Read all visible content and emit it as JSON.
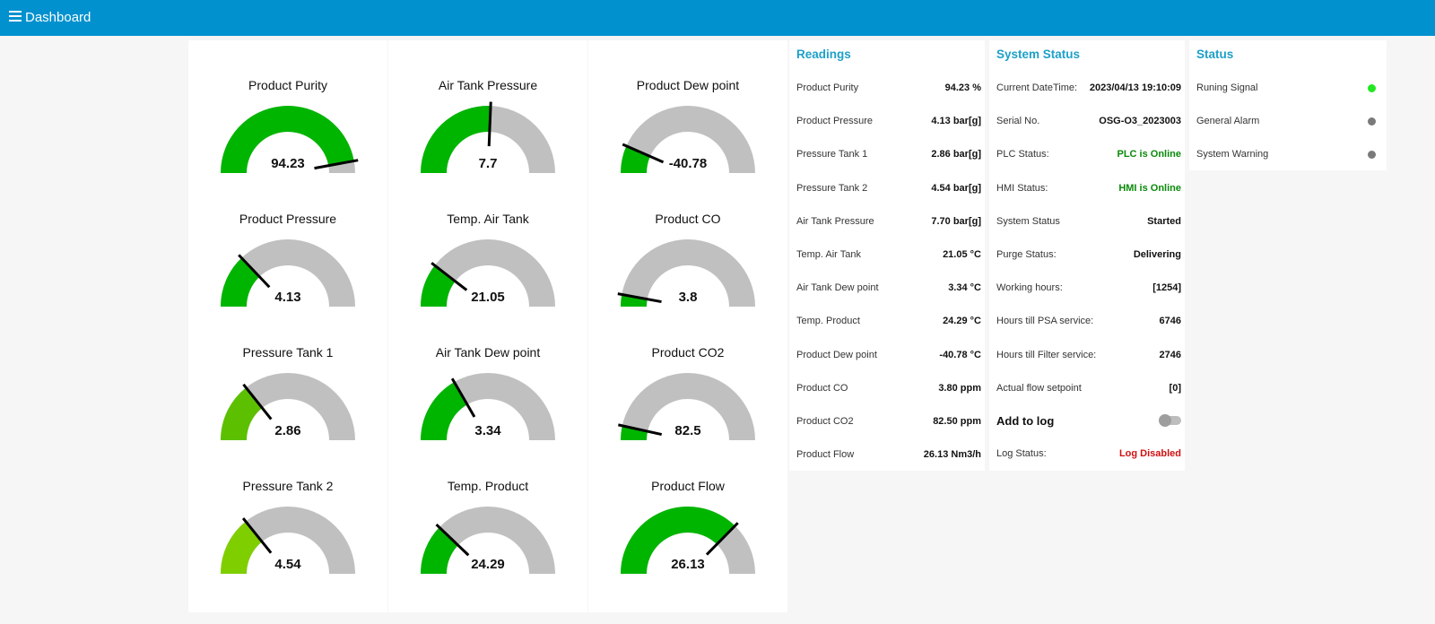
{
  "header": {
    "title": "Dashboard",
    "menu_icon": "hamburger-icon",
    "bg_color": "#0191cf"
  },
  "gauges": [
    [
      {
        "title": "Product Purity",
        "value": "94.23",
        "unit": "%",
        "min": "0",
        "max": "100",
        "fill": 0.9423,
        "color": "#00b500"
      },
      {
        "title": "Product Pressure",
        "value": "4.13",
        "unit": "bar[g]",
        "min": "0",
        "max": "16",
        "fill": 0.258,
        "color": "#00b500"
      },
      {
        "title": "Pressure Tank 1",
        "value": "2.86",
        "unit": "bar[g]",
        "min": "0",
        "max": "10",
        "fill": 0.286,
        "color": "#5cc000"
      },
      {
        "title": "Pressure Tank 2",
        "value": "4.54",
        "unit": "bar[g]",
        "min": "0",
        "max": "16",
        "fill": 0.284,
        "color": "#7fce00"
      }
    ],
    [
      {
        "title": "Air Tank Pressure",
        "value": "7.7",
        "unit": "bar[g]",
        "min": "0",
        "max": "15",
        "fill": 0.513,
        "color": "#00b500"
      },
      {
        "title": "Temp. Air Tank",
        "value": "21.05",
        "unit": "°C",
        "min": "0",
        "max": "100",
        "fill": 0.21,
        "color": "#00b500"
      },
      {
        "title": "Air Tank Dew point",
        "value": "3.34",
        "unit": "°C",
        "min": "-20",
        "max": "50",
        "fill": 0.333,
        "color": "#00b500"
      },
      {
        "title": "Temp. Product",
        "value": "24.29",
        "unit": "°C",
        "min": "0",
        "max": "100",
        "fill": 0.243,
        "color": "#00b500"
      }
    ],
    [
      {
        "title": "Product Dew point",
        "value": "-40.78",
        "unit": "°C",
        "min": "-50",
        "max": "20",
        "fill": 0.132,
        "color": "#00b500"
      },
      {
        "title": "Product CO",
        "value": "3.8",
        "unit": "ppm",
        "min": "0",
        "max": "65",
        "fill": 0.058,
        "color": "#00b500"
      },
      {
        "title": "Product CO2",
        "value": "82.5",
        "unit": "ppm",
        "min": "0",
        "max": "1200",
        "fill": 0.069,
        "color": "#00b500"
      },
      {
        "title": "Product Flow",
        "value": "26.13",
        "unit": "Nm3/h",
        "min": "0",
        "max": "35",
        "fill": 0.747,
        "color": "#00b500"
      }
    ]
  ],
  "readings": {
    "title": "Readings",
    "rows": [
      {
        "label": "Product Purity",
        "value": "94.23 %"
      },
      {
        "label": "Product Pressure",
        "value": "4.13 bar[g]"
      },
      {
        "label": "Pressure Tank 1",
        "value": "2.86 bar[g]"
      },
      {
        "label": "Pressure Tank 2",
        "value": "4.54 bar[g]"
      },
      {
        "label": "Air Tank Pressure",
        "value": "7.70 bar[g]"
      },
      {
        "label": "Temp. Air Tank",
        "value": "21.05 °C"
      },
      {
        "label": "Air Tank Dew point",
        "value": "3.34 °C"
      },
      {
        "label": "Temp. Product",
        "value": "24.29 °C"
      },
      {
        "label": "Product Dew point",
        "value": "-40.78 °C"
      },
      {
        "label": "Product CO",
        "value": "3.80 ppm"
      },
      {
        "label": "Product CO2",
        "value": "82.50 ppm"
      },
      {
        "label": "Product Flow",
        "value": "26.13 Nm3/h"
      }
    ]
  },
  "system_status": {
    "title": "System Status",
    "rows": [
      {
        "label": "Current DateTime:",
        "value": "2023/04/13 19:10:09",
        "style": ""
      },
      {
        "label": "Serial No.",
        "value": "OSG-O3_2023003",
        "style": ""
      },
      {
        "label": "PLC Status:",
        "value": "PLC is Online",
        "style": "green"
      },
      {
        "label": "HMI Status:",
        "value": "HMI is Online",
        "style": "green"
      },
      {
        "label": "System Status",
        "value": "Started",
        "style": ""
      },
      {
        "label": "Purge Status:",
        "value": "Delivering",
        "style": ""
      },
      {
        "label": "Working hours:",
        "value": "[1254]",
        "style": ""
      },
      {
        "label": "Hours till PSA service:",
        "value": "6746",
        "style": ""
      },
      {
        "label": "Hours till Filter service:",
        "value": "2746",
        "style": ""
      },
      {
        "label": "Actual flow setpoint",
        "value": "[0]",
        "style": ""
      }
    ],
    "add_to_log_label": "Add to log",
    "add_to_log_on": false,
    "log_status_label": "Log Status:",
    "log_status_value": "Log Disabled"
  },
  "status": {
    "title": "Status",
    "rows": [
      {
        "label": "Runing Signal",
        "color": "#22e822"
      },
      {
        "label": "General Alarm",
        "color": "#7a7a7a"
      },
      {
        "label": "System Warning",
        "color": "#7a7a7a"
      }
    ]
  }
}
